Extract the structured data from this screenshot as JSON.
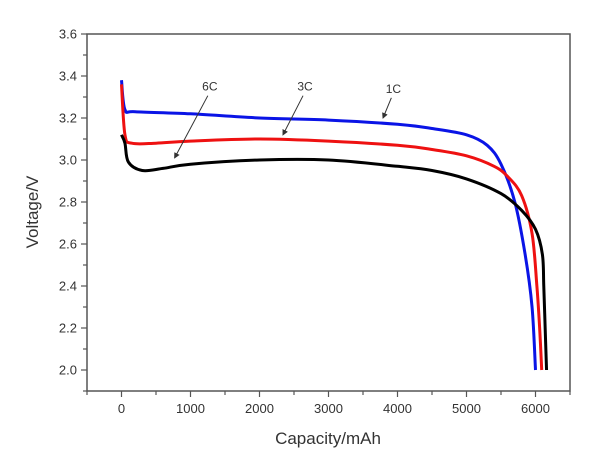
{
  "chart_data": {
    "type": "line",
    "title": "",
    "xlabel": "Capacity/mAh",
    "ylabel": "Voltage/V",
    "xlim": [
      -500,
      6500
    ],
    "ylim": [
      1.9,
      3.6
    ],
    "xticks": [
      0,
      1000,
      2000,
      3000,
      4000,
      5000,
      6000
    ],
    "xtick_labels": [
      "0",
      "1000",
      "2000",
      "3000",
      "4000",
      "5000",
      "6000"
    ],
    "yticks": [
      2.0,
      2.2,
      2.4,
      2.6,
      2.8,
      3.0,
      3.2,
      3.4,
      3.6
    ],
    "ytick_labels": [
      "2.0",
      "2.2",
      "2.4",
      "2.6",
      "2.8",
      "3.0",
      "3.2",
      "3.4",
      "3.6"
    ],
    "grid": false,
    "legend": "none",
    "series": [
      {
        "name": "1C",
        "color": "#0a14e6",
        "x": [
          0,
          50,
          200,
          1000,
          2000,
          3000,
          4000,
          4500,
          5000,
          5300,
          5500,
          5700,
          5850,
          5950,
          6000
        ],
        "y": [
          3.38,
          3.24,
          3.23,
          3.22,
          3.2,
          3.19,
          3.17,
          3.15,
          3.12,
          3.07,
          2.98,
          2.8,
          2.55,
          2.3,
          2.0
        ]
      },
      {
        "name": "3C",
        "color": "#ee1111",
        "x": [
          0,
          50,
          150,
          500,
          1000,
          2000,
          3000,
          4000,
          4500,
          5000,
          5400,
          5600,
          5800,
          5950,
          6020,
          6060,
          6090
        ],
        "y": [
          3.36,
          3.12,
          3.08,
          3.08,
          3.09,
          3.1,
          3.09,
          3.07,
          3.05,
          3.02,
          2.97,
          2.92,
          2.83,
          2.65,
          2.4,
          2.2,
          2.0
        ]
      },
      {
        "name": "6C",
        "color": "#000000",
        "x": [
          0,
          50,
          100,
          300,
          600,
          1000,
          2000,
          3000,
          4000,
          4500,
          5000,
          5500,
          5800,
          6000,
          6100,
          6120,
          6140,
          6160
        ],
        "y": [
          3.12,
          3.08,
          2.99,
          2.95,
          2.96,
          2.98,
          3.0,
          3.0,
          2.97,
          2.95,
          2.91,
          2.84,
          2.76,
          2.67,
          2.55,
          2.4,
          2.2,
          2.0
        ]
      }
    ],
    "annotations": [
      {
        "text": "6C",
        "x": 1280,
        "y": 3.33,
        "arrow_to": [
          770,
          3.01
        ]
      },
      {
        "text": "3C",
        "x": 2660,
        "y": 3.33,
        "arrow_to": [
          2340,
          3.12
        ]
      },
      {
        "text": "1C",
        "x": 3940,
        "y": 3.32,
        "arrow_to": [
          3790,
          3.2
        ]
      }
    ]
  }
}
